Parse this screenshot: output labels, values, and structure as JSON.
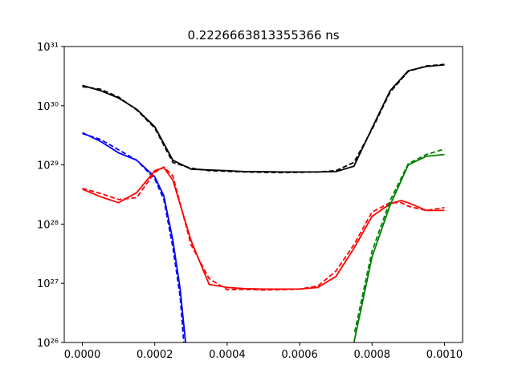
{
  "chart_data": {
    "type": "line",
    "title": "0.2226663813355366 ns",
    "xlim": [
      -5e-05,
      0.00105
    ],
    "xticks": [
      {
        "value": 0,
        "label": "0.0000"
      },
      {
        "value": 0.0002,
        "label": "0.0002"
      },
      {
        "value": 0.0004,
        "label": "0.0004"
      },
      {
        "value": 0.0006,
        "label": "0.0006"
      },
      {
        "value": 0.0008,
        "label": "0.0008"
      },
      {
        "value": 0.001,
        "label": "0.0010"
      }
    ],
    "ylim": [
      1e+26,
      1e+31
    ],
    "yscale": "log",
    "yticks": [
      {
        "value": 1e+26,
        "label": "10²⁶"
      },
      {
        "value": 1e+27,
        "label": "10²⁷"
      },
      {
        "value": 1e+28,
        "label": "10²⁸"
      },
      {
        "value": 1e+29,
        "label": "10²⁹"
      },
      {
        "value": 1e+30,
        "label": "10³⁰"
      },
      {
        "value": 1e+31,
        "label": "10³¹"
      }
    ],
    "series": [
      {
        "color": "#000000",
        "linestyle": "solid",
        "x": [
          0,
          5e-05,
          0.0001,
          0.00015,
          0.0002,
          0.00025,
          0.0003,
          0.00035,
          0.0004,
          0.00045,
          0.0005,
          0.00055,
          0.0006,
          0.00065,
          0.0007,
          0.00075,
          0.0008,
          0.00085,
          0.0009,
          0.00095,
          0.001
        ],
        "values": [
          2.2e+30,
          1.8e+30,
          1.35e+30,
          8.7e+29,
          4.4e+29,
          1.2e+29,
          8.5e+28,
          8.2e+28,
          8e+28,
          7.7e+28,
          7.7e+28,
          7.6e+28,
          7.6e+28,
          7.6e+28,
          7.7e+28,
          9.5e+28,
          4.2e+29,
          1.8e+30,
          3.9e+30,
          4.6e+30,
          4.9e+30
        ]
      },
      {
        "color": "#000000",
        "linestyle": "dashed",
        "x": [
          0,
          5e-05,
          0.0001,
          0.00015,
          0.0002,
          0.00025,
          0.0003,
          0.00035,
          0.0004,
          0.00045,
          0.0005,
          0.00055,
          0.0006,
          0.00065,
          0.0007,
          0.00075,
          0.0008,
          0.00085,
          0.0009,
          0.00095,
          0.001
        ],
        "values": [
          2.1e+30,
          1.9e+30,
          1.4e+30,
          8.5e+29,
          4.2e+29,
          1.1e+29,
          8.8e+28,
          8e+28,
          7.8e+28,
          7.6e+28,
          7.5e+28,
          7.4e+28,
          7.5e+28,
          7.6e+28,
          8e+28,
          1.1e+29,
          4e+29,
          1.7e+30,
          3.8e+30,
          4.7e+30,
          5e+30
        ]
      },
      {
        "color": "#0000ff",
        "linestyle": "solid",
        "x": [
          0,
          5e-05,
          0.0001,
          0.00015,
          0.0002,
          0.000225,
          0.00025,
          0.00027,
          0.000285
        ],
        "values": [
          3.5e+29,
          2.5e+29,
          1.6e+29,
          1.2e+29,
          6.3e+28,
          3e+28,
          5.3e+27,
          8.1e+26,
          1e+26
        ]
      },
      {
        "color": "#0000ff",
        "linestyle": "dashed",
        "x": [
          0,
          5e-05,
          0.0001,
          0.00015,
          0.0002,
          0.000225,
          0.00025,
          0.00027,
          0.00028
        ],
        "values": [
          3.4e+29,
          2.7e+29,
          1.8e+29,
          1.2e+29,
          5.8e+28,
          2.6e+28,
          4e+27,
          6e+26,
          1e+26
        ]
      },
      {
        "color": "#ff0000",
        "linestyle": "solid",
        "x": [
          0,
          5e-05,
          0.0001,
          0.00015,
          0.0002,
          0.000225,
          0.00025,
          0.0003,
          0.00035,
          0.0004,
          0.00045,
          0.0005,
          0.00055,
          0.0006,
          0.00065,
          0.0007,
          0.00075,
          0.0008,
          0.00085,
          0.00088,
          0.0009,
          0.00095,
          0.001
        ],
        "values": [
          3.9e+28,
          2.9e+28,
          2.3e+28,
          3.4e+28,
          8e+28,
          9e+28,
          5.5e+28,
          5.3e+27,
          9.6e+26,
          8.5e+26,
          8.1e+26,
          8e+26,
          8e+26,
          8e+26,
          8.5e+26,
          1.3e+27,
          3.9e+27,
          1.35e+28,
          2.2e+28,
          2.5e+28,
          2.3e+28,
          1.7e+28,
          1.7e+28
        ]
      },
      {
        "color": "#ff0000",
        "linestyle": "dashed",
        "x": [
          0,
          5e-05,
          0.0001,
          0.00015,
          0.0002,
          0.000225,
          0.00025,
          0.0003,
          0.00035,
          0.0004,
          0.00045,
          0.0005,
          0.00055,
          0.0006,
          0.00065,
          0.0007,
          0.00075,
          0.0008,
          0.00085,
          0.00088,
          0.0009,
          0.00095,
          0.001
        ],
        "values": [
          4e+28,
          3.3e+28,
          2.6e+28,
          2.8e+28,
          7.5e+28,
          9.2e+28,
          6.5e+28,
          4.5e+27,
          1.2e+27,
          7.8e+26,
          7.9e+26,
          7.7e+26,
          7.8e+26,
          8e+26,
          9e+26,
          1.6e+27,
          4.5e+27,
          1.6e+28,
          2.3e+28,
          2.3e+28,
          2e+28,
          1.7e+28,
          1.9e+28
        ]
      },
      {
        "color": "#008000",
        "linestyle": "solid",
        "x": [
          0.00075,
          0.0008,
          0.00085,
          0.0009,
          0.00095,
          0.001
        ],
        "values": [
          1e+26,
          2.8e+27,
          2.1e+28,
          1e+29,
          1.4e+29,
          1.5e+29
        ]
      },
      {
        "color": "#008000",
        "linestyle": "dashed",
        "x": [
          0.000752,
          0.0008,
          0.00085,
          0.0009,
          0.00095,
          0.001
        ],
        "values": [
          1.5e+26,
          3.5e+27,
          2.5e+28,
          1.05e+29,
          1.5e+29,
          1.85e+29
        ]
      }
    ]
  }
}
